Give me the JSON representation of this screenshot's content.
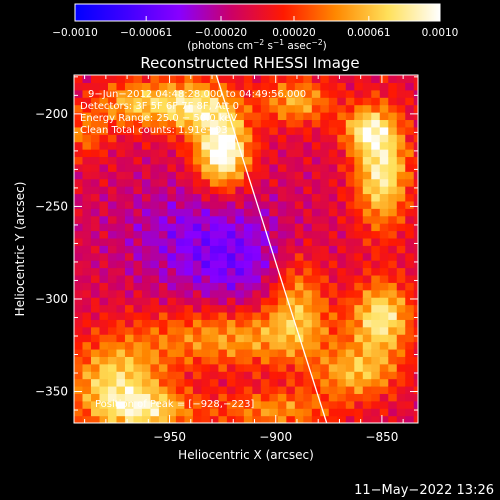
{
  "chart_data": {
    "type": "heatmap",
    "title": "Reconstructed RHESSI Image",
    "xlabel": "Heliocentric X (arcsec)",
    "ylabel": "Heliocentric Y (arcsec)",
    "xlim": [
      -995,
      -833
    ],
    "ylim": [
      -367,
      -179
    ],
    "x_ticks": [
      -950,
      -900,
      -850
    ],
    "x_tick_labels": [
      "−950",
      "−900",
      "−850"
    ],
    "y_ticks": [
      -200,
      -250,
      -300,
      -350
    ],
    "y_tick_labels": [
      "−200",
      "−250",
      "−300",
      "−350"
    ],
    "colorbar": {
      "range": [
        -0.001,
        0.001
      ],
      "ticks": [
        -0.001,
        -0.00061,
        -0.0002,
        0.0002,
        0.00061,
        0.001
      ],
      "tick_labels": [
        "−0.0010",
        "−0.00061",
        "−0.00020",
        "0.00020",
        "0.00061",
        "0.0010"
      ],
      "unit_text": {
        "base": "(photons cm",
        "exp1": "−2",
        "mid1": " s",
        "exp2": "−1",
        "mid2": " asec",
        "exp3": "−2",
        "end": ")"
      },
      "colors": [
        "#0000ff",
        "#4000ff",
        "#8800ff",
        "#cc0066",
        "#ff1a00",
        "#ff8800",
        "#ffe05a",
        "#ffffff"
      ]
    },
    "annotations": [
      "9−Jun−2012 04:48:28.000 to 04:49:56.000",
      "Detectors: 3F 5F 6F 7F 8F, Att 0",
      "Energy Range: 25.0 − 50.0 keV",
      "Clean    Total counts: 1.91e+03"
    ],
    "peak_label": "Position of Peak = [−928,−223]",
    "peak_position": [
      -928,
      -223
    ],
    "limb_line": [
      [
        -928,
        -179
      ],
      [
        -876,
        -367
      ]
    ],
    "sources": [
      {
        "x": -925,
        "y": -220,
        "amp": 0.00115,
        "sx": 9,
        "sy": 14
      },
      {
        "x": -940,
        "y": -195,
        "amp": 0.0008,
        "sx": 14,
        "sy": 10
      },
      {
        "x": -968,
        "y": -194,
        "amp": 0.00055,
        "sx": 12,
        "sy": 9
      },
      {
        "x": -890,
        "y": -193,
        "amp": 0.0006,
        "sx": 12,
        "sy": 9
      },
      {
        "x": -850,
        "y": -230,
        "amp": 0.0009,
        "sx": 9,
        "sy": 22
      },
      {
        "x": -858,
        "y": -208,
        "amp": 0.0006,
        "sx": 8,
        "sy": 8
      },
      {
        "x": -890,
        "y": -300,
        "amp": 0.0006,
        "sx": 10,
        "sy": 18
      },
      {
        "x": -850,
        "y": -310,
        "amp": 0.00085,
        "sx": 10,
        "sy": 14
      },
      {
        "x": -862,
        "y": -340,
        "amp": 0.0006,
        "sx": 14,
        "sy": 10
      },
      {
        "x": -920,
        "y": -320,
        "amp": 0.0006,
        "sx": 30,
        "sy": 12
      },
      {
        "x": -975,
        "y": -345,
        "amp": 0.00075,
        "sx": 16,
        "sy": 16
      },
      {
        "x": -960,
        "y": -360,
        "amp": 0.0006,
        "sx": 16,
        "sy": 8
      },
      {
        "x": -900,
        "y": -360,
        "amp": 0.0005,
        "sx": 20,
        "sy": 8
      },
      {
        "x": -990,
        "y": -210,
        "amp": 0.0004,
        "sx": 8,
        "sy": 10
      },
      {
        "x": -940,
        "y": -265,
        "amp": -0.0003,
        "sx": 25,
        "sy": 20
      },
      {
        "x": -915,
        "y": -285,
        "amp": -0.0003,
        "sx": 20,
        "sy": 20
      }
    ]
  },
  "footer": {
    "date": "11−May−2022 13:26"
  }
}
